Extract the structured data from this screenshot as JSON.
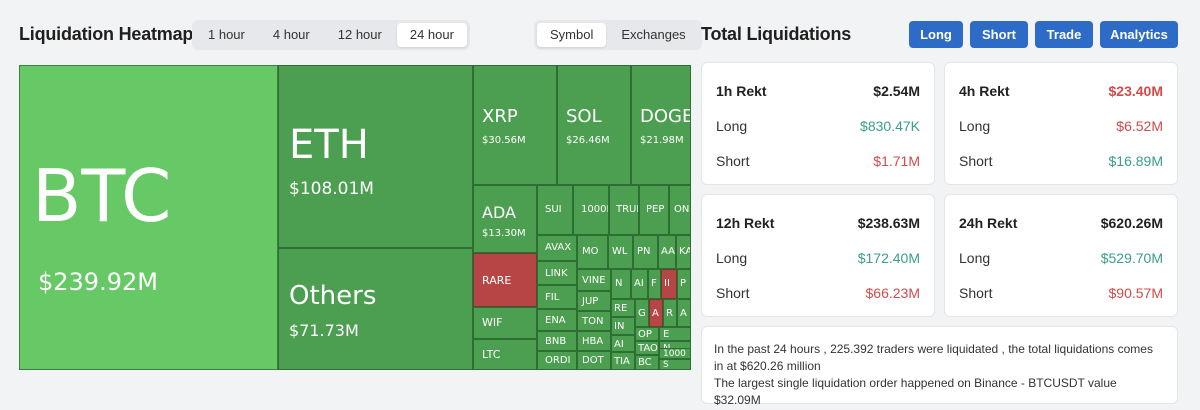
{
  "heatmap": {
    "title": "Liquidation Heatmap",
    "time_tabs": [
      {
        "label": "1 hour"
      },
      {
        "label": "4 hour"
      },
      {
        "label": "12 hour"
      },
      {
        "label": "24 hour",
        "active": true
      }
    ],
    "view_tabs": [
      {
        "label": "Symbol",
        "active": true
      },
      {
        "label": "Exchanges"
      }
    ],
    "colors": {
      "long_bright": "#66c966",
      "long": "#4c9f50",
      "short": "#b84545",
      "border": "#2f6a33"
    },
    "tiles": [
      {
        "symbol": "BTC",
        "value": "$239.92M",
        "color": "long_bright"
      },
      {
        "symbol": "ETH",
        "value": "$108.01M",
        "color": "long"
      },
      {
        "symbol": "Others",
        "value": "$71.73M",
        "color": "long"
      },
      {
        "symbol": "XRP",
        "value": "$30.56M",
        "color": "long"
      },
      {
        "symbol": "SOL",
        "value": "$26.46M",
        "color": "long"
      },
      {
        "symbol": "DOGE",
        "value": "$21.98M",
        "color": "long"
      },
      {
        "symbol": "ADA",
        "value": "$13.30M",
        "color": "long"
      },
      {
        "symbol": "RARE",
        "value": "",
        "color": "short"
      },
      {
        "symbol": "WIF",
        "value": "",
        "color": "long"
      },
      {
        "symbol": "LTC",
        "value": "",
        "color": "long"
      },
      {
        "symbol": "SUI",
        "value": "",
        "color": "long"
      },
      {
        "symbol": "1000P",
        "value": "",
        "color": "long"
      },
      {
        "symbol": "TRUI",
        "value": "",
        "color": "long"
      },
      {
        "symbol": "PEP",
        "value": "",
        "color": "long"
      },
      {
        "symbol": "ON",
        "value": "",
        "color": "long"
      },
      {
        "symbol": "AVAX",
        "value": "",
        "color": "long"
      },
      {
        "symbol": "LINK",
        "value": "",
        "color": "long"
      },
      {
        "symbol": "FIL",
        "value": "",
        "color": "long"
      },
      {
        "symbol": "ENA",
        "value": "",
        "color": "long"
      },
      {
        "symbol": "BNB",
        "value": "",
        "color": "long"
      },
      {
        "symbol": "ORDI",
        "value": "",
        "color": "long"
      },
      {
        "symbol": "MO",
        "value": "",
        "color": "long"
      },
      {
        "symbol": "WL",
        "value": "",
        "color": "long"
      },
      {
        "symbol": "PN",
        "value": "",
        "color": "long"
      },
      {
        "symbol": "AA",
        "value": "",
        "color": "long"
      },
      {
        "symbol": "KA",
        "value": "",
        "color": "long"
      },
      {
        "symbol": "VINE",
        "value": "",
        "color": "long"
      },
      {
        "symbol": "JUP",
        "value": "",
        "color": "long"
      },
      {
        "symbol": "TON",
        "value": "",
        "color": "long"
      },
      {
        "symbol": "HBA",
        "value": "",
        "color": "long"
      },
      {
        "symbol": "DOT",
        "value": "",
        "color": "long"
      },
      {
        "symbol": "N",
        "value": "",
        "color": "long"
      },
      {
        "symbol": "AI",
        "value": "",
        "color": "long"
      },
      {
        "symbol": "F",
        "value": "",
        "color": "long"
      },
      {
        "symbol": "II",
        "value": "",
        "color": "short"
      },
      {
        "symbol": "P",
        "value": "",
        "color": "long"
      },
      {
        "symbol": "RE",
        "value": "",
        "color": "long"
      },
      {
        "symbol": "G",
        "value": "",
        "color": "long"
      },
      {
        "symbol": "A",
        "value": "",
        "color": "short"
      },
      {
        "symbol": "R",
        "value": "",
        "color": "long"
      },
      {
        "symbol": "A",
        "value": "",
        "color": "long"
      },
      {
        "symbol": "IN",
        "value": "",
        "color": "long"
      },
      {
        "symbol": "AI",
        "value": "",
        "color": "long"
      },
      {
        "symbol": "TIA",
        "value": "",
        "color": "long"
      },
      {
        "symbol": "OP",
        "value": "",
        "color": "long"
      },
      {
        "symbol": "E",
        "value": "",
        "color": "long"
      },
      {
        "symbol": "TAO",
        "value": "",
        "color": "long"
      },
      {
        "symbol": "N",
        "value": "",
        "color": "long"
      },
      {
        "symbol": "1000",
        "value": "",
        "color": "long"
      },
      {
        "symbol": "BC",
        "value": "",
        "color": "long"
      },
      {
        "symbol": "S",
        "value": "",
        "color": "long"
      }
    ]
  },
  "totals": {
    "title": "Total Liquidations",
    "buttons": [
      "Long",
      "Short",
      "Trade",
      "Analytics"
    ],
    "button_color": "#2e6bc6",
    "cards": [
      {
        "title": "1h Rekt",
        "total": "$2.54M",
        "long_label": "Long",
        "long": "$830.47K",
        "short_label": "Short",
        "short": "$1.71M"
      },
      {
        "title": "4h Rekt",
        "total": "$23.40M",
        "long_label": "Long",
        "long": "$6.52M",
        "short_label": "Short",
        "short": "$16.89M"
      },
      {
        "title": "12h Rekt",
        "total": "$238.63M",
        "long_label": "Long",
        "long": "$172.40M",
        "short_label": "Short",
        "short": "$66.23M"
      },
      {
        "title": "24h Rekt",
        "total": "$620.26M",
        "long_label": "Long",
        "long": "$529.70M",
        "short_label": "Short",
        "short": "$90.57M"
      }
    ],
    "summary_line1": "In the past 24 hours , 225.392 traders were liquidated , the total liquidations comes in at $620.26 million",
    "summary_line2": "The largest single liquidation order happened on Binance - BTCUSDT value $32.09M"
  }
}
